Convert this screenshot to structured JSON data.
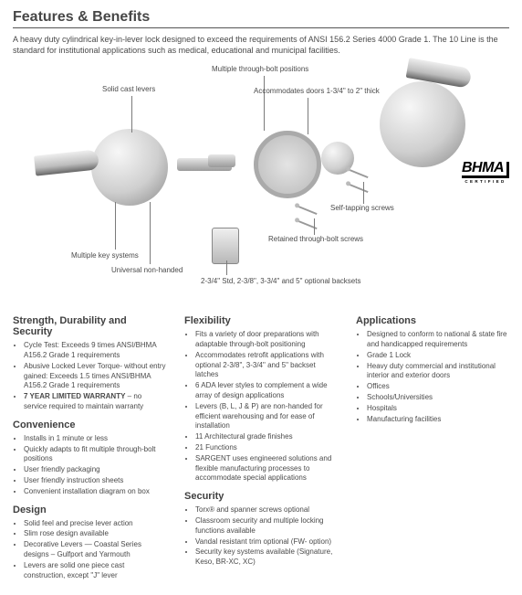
{
  "title": "Features & Benefits",
  "intro": "A heavy duty cylindrical key-in-lever lock designed to exceed the requirements of ANSI 156.2 Series 4000 Grade 1. The 10 Line is the standard for institutional applications such as medical, educational and municipal facilities.",
  "bhma": {
    "logo": "BHMA",
    "cert": "CERTIFIED"
  },
  "callouts": {
    "solid_levers": "Solid cast levers",
    "multi_bolt": "Multiple through-bolt positions",
    "accom_doors": "Accommodates doors 1-3/4\" to 2\" thick",
    "self_tap": "Self-tapping screws",
    "retained": "Retained through-bolt screws",
    "multi_key": "Multiple key systems",
    "non_handed": "Universal non-handed",
    "backsets": "2-3/4\" Std, 2-3/8\", 3-3/4\"\nand 5\" optional backsets"
  },
  "sections": {
    "col1": [
      {
        "h": "Strength, Durability and Security",
        "items": [
          "Cycle Test: Exceeds 9 times ANSI/BHMA A156.2 Grade 1 requirements",
          "Abusive Locked Lever Torque- without entry gained: Exceeds 1.5 times ANSI/BHMA A156.2 Grade 1 requirements",
          "<b>7 YEAR LIMITED WARRANTY</b> – no service required to maintain warranty"
        ]
      },
      {
        "h": "Convenience",
        "items": [
          "Installs in 1 minute or less",
          "Quickly adapts to fit multiple through-bolt positions",
          "User friendly packaging",
          "User friendly instruction sheets",
          "Convenient installation diagram on box"
        ]
      },
      {
        "h": "Design",
        "items": [
          "Solid feel and precise lever action",
          "Slim rose design available",
          "Decorative Levers — Coastal Series designs – Gulfport and Yarmouth",
          "Levers are solid one piece cast construction, except \"J\" lever"
        ]
      }
    ],
    "col2": [
      {
        "h": "Flexibility",
        "items": [
          "Fits a variety of door preparations with adaptable through-bolt positioning",
          "Accommodates retrofit applications with optional 2-3/8\", 3-3/4\" and 5\" backset latches",
          "6 ADA lever styles to complement a wide array of design applications",
          "Levers (B, L, J & P) are non-handed for efficient warehousing and for ease of installation",
          "11 Architectural grade finishes",
          "21 Functions",
          "SARGENT uses engineered solutions and flexible manufacturing processes to accommodate special applications"
        ]
      },
      {
        "h": "Security",
        "items": [
          "Torx® and spanner screws optional",
          "Classroom security and multiple locking functions available",
          "Vandal resistant trim optional (FW- option)",
          "Security key systems available (Signature, Keso, BR-XC, XC)"
        ]
      }
    ],
    "col3": [
      {
        "h": "Applications",
        "items": [
          "Designed to conform to national & state fire and handicapped requirements",
          "Grade 1 Lock",
          "Heavy duty commercial and institutional interior and exterior doors",
          "Offices",
          "Schools/Universities",
          "Hospitals",
          "Manufacturing facilities"
        ]
      }
    ]
  }
}
